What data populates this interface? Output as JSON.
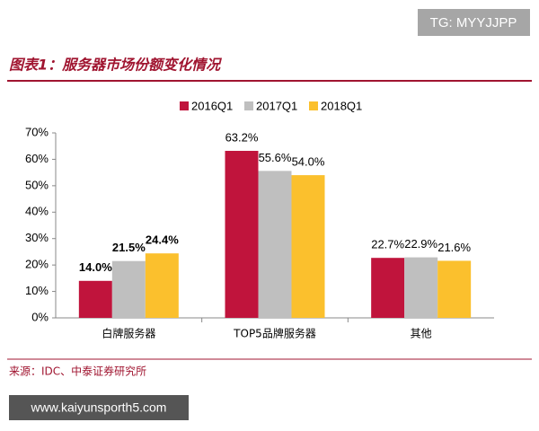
{
  "watermark_top": "TG: MYYJJPP",
  "watermark_bottom": "www.kaiyunsporth5.com",
  "chart_data": {
    "type": "bar",
    "title": "图表1：服务器市场份额变化情况",
    "source": "来源：IDC、中泰证券研究所",
    "categories": [
      "白牌服务器",
      "TOP5品牌服务器",
      "其他"
    ],
    "series": [
      {
        "name": "2016Q1",
        "color": "#c0143c",
        "values": [
          14.0,
          63.2,
          22.7
        ],
        "value_labels": [
          "14.0%",
          "63.2%",
          "22.7%"
        ]
      },
      {
        "name": "2017Q1",
        "color": "#bfbfbf",
        "values": [
          21.5,
          55.6,
          22.9
        ],
        "value_labels": [
          "21.5%",
          "55.6%",
          "22.9%"
        ]
      },
      {
        "name": "2018Q1",
        "color": "#fbc02d",
        "values": [
          24.4,
          54.0,
          21.6
        ],
        "value_labels": [
          "24.4%",
          "54.0%",
          "21.6%"
        ]
      }
    ],
    "ylim": [
      0,
      70
    ],
    "yticks": [
      {
        "value": 0,
        "label": "0%"
      },
      {
        "value": 10,
        "label": "10%"
      },
      {
        "value": 20,
        "label": "20%"
      },
      {
        "value": 30,
        "label": "30%"
      },
      {
        "value": 40,
        "label": "40%"
      },
      {
        "value": 50,
        "label": "50%"
      },
      {
        "value": 60,
        "label": "60%"
      },
      {
        "value": 70,
        "label": "70%"
      }
    ],
    "legend": "top"
  }
}
